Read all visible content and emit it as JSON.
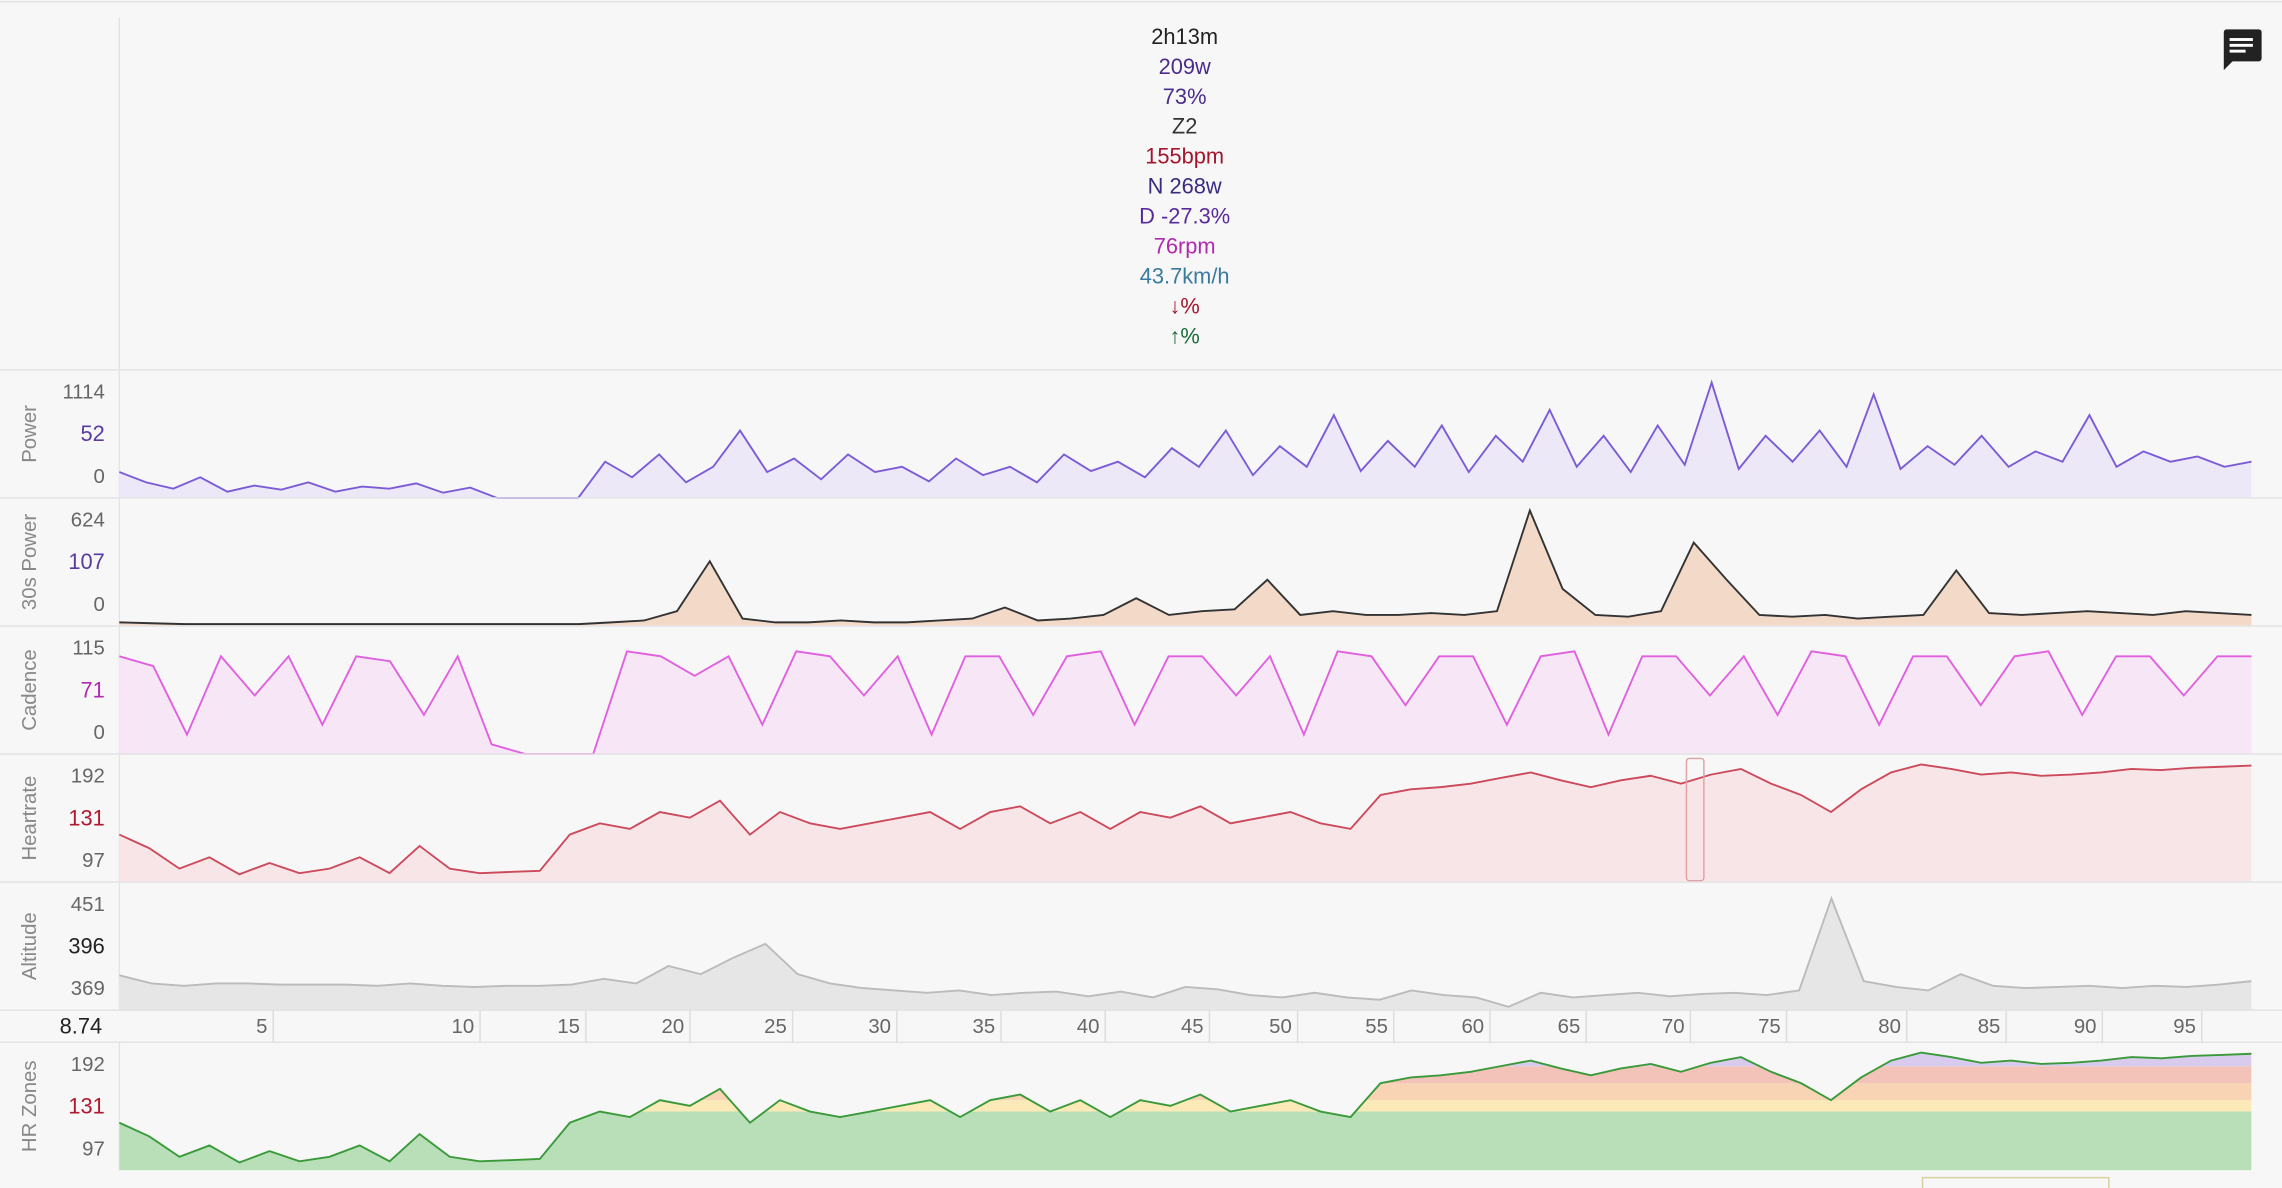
{
  "summary": [
    {
      "text": "2h13m",
      "color": "#222222"
    },
    {
      "text": "209w",
      "color": "#4a2c8c"
    },
    {
      "text": "73%",
      "color": "#4a2c8c"
    },
    {
      "text": "Z2",
      "color": "#333333"
    },
    {
      "text": "155bpm",
      "color": "#a3162e"
    },
    {
      "text": "N 268w",
      "color": "#3b2a80"
    },
    {
      "text": "D -27.3%",
      "color": "#5a2a9c"
    },
    {
      "text": "76rpm",
      "color": "#b02ab0"
    },
    {
      "text": "43.7km/h",
      "color": "#3a7a9e"
    },
    {
      "text": "↓%",
      "color": "#a3162e"
    },
    {
      "text": "↑%",
      "color": "#1a6a3a"
    }
  ],
  "xlim": [
    0,
    133
  ],
  "x_start_label": "8.74",
  "xticks": [
    5,
    10,
    15,
    20,
    25,
    30,
    35,
    40,
    45,
    50,
    55,
    60,
    65,
    70,
    75,
    80,
    85,
    90,
    95
  ],
  "xtick_times": [
    9.6,
    22.5,
    29.1,
    35.6,
    42.0,
    48.5,
    55.0,
    61.5,
    68.0,
    73.5,
    79.5,
    85.5,
    91.5,
    98.0,
    104.0,
    111.5,
    117.7,
    123.7,
    129.9
  ],
  "cursor_time": 98.3,
  "panels": [
    {
      "label": "Power",
      "ticks": [
        "1114",
        "52",
        "0"
      ],
      "mid_color": "#5b3aa0",
      "color": "#7b5cd6",
      "fill": "#ece8f7",
      "ylim": [
        0,
        1180
      ],
      "values": [
        250,
        150,
        90,
        200,
        60,
        120,
        80,
        150,
        60,
        110,
        90,
        140,
        50,
        100,
        0,
        0,
        0,
        0,
        350,
        200,
        420,
        150,
        300,
        650,
        250,
        380,
        180,
        420,
        250,
        300,
        160,
        380,
        220,
        300,
        150,
        420,
        260,
        350,
        200,
        480,
        300,
        650,
        220,
        500,
        300,
        800,
        260,
        550,
        300,
        700,
        250,
        600,
        350,
        850,
        300,
        600,
        250,
        700,
        320,
        1114,
        280,
        600,
        350,
        650,
        300,
        1000,
        280,
        500,
        320,
        600,
        300,
        450,
        350,
        800,
        300,
        450,
        350,
        400,
        300,
        350
      ]
    },
    {
      "label": "30s Power",
      "ticks": [
        "624",
        "107",
        "0"
      ],
      "mid_color": "#5b3aa0",
      "color": "#333333",
      "fill": "#f3d9c8",
      "ylim": [
        0,
        660
      ],
      "values": [
        20,
        15,
        10,
        10,
        10,
        10,
        10,
        10,
        10,
        10,
        10,
        10,
        10,
        10,
        10,
        20,
        30,
        80,
        350,
        40,
        20,
        20,
        30,
        20,
        20,
        30,
        40,
        100,
        30,
        40,
        60,
        150,
        60,
        80,
        90,
        250,
        60,
        80,
        60,
        60,
        70,
        60,
        80,
        624,
        200,
        60,
        50,
        80,
        450,
        250,
        60,
        50,
        60,
        40,
        50,
        60,
        300,
        70,
        60,
        70,
        80,
        70,
        60,
        80,
        70,
        60
      ]
    },
    {
      "label": "Cadence",
      "ticks": [
        "115",
        "71",
        "0"
      ],
      "mid_color": "#b02ab0",
      "color": "#e060e0",
      "fill": "#f6e6f6",
      "ylim": [
        0,
        125
      ],
      "values": [
        100,
        90,
        20,
        100,
        60,
        100,
        30,
        100,
        95,
        40,
        100,
        10,
        0,
        0,
        0,
        105,
        100,
        80,
        100,
        30,
        105,
        100,
        60,
        100,
        20,
        100,
        100,
        40,
        100,
        105,
        30,
        100,
        100,
        60,
        100,
        20,
        105,
        100,
        50,
        100,
        100,
        30,
        100,
        105,
        20,
        100,
        100,
        60,
        100,
        40,
        105,
        100,
        30,
        100,
        100,
        50,
        100,
        105,
        40,
        100,
        100,
        60,
        100,
        100
      ]
    },
    {
      "label": "Heartrate",
      "ticks": [
        "192",
        "131",
        "97"
      ],
      "mid_color": "#b01830",
      "color": "#cc4a5c",
      "fill": "#f8e5e7",
      "ylim": [
        88,
        196
      ],
      "cursor": true,
      "values": [
        130,
        118,
        100,
        110,
        95,
        105,
        96,
        100,
        110,
        96,
        120,
        100,
        96,
        97,
        98,
        130,
        140,
        135,
        150,
        145,
        160,
        130,
        150,
        140,
        135,
        140,
        145,
        150,
        135,
        150,
        155,
        140,
        150,
        135,
        150,
        145,
        155,
        140,
        145,
        150,
        140,
        135,
        165,
        170,
        172,
        175,
        180,
        185,
        178,
        172,
        178,
        182,
        175,
        183,
        188,
        175,
        165,
        150,
        170,
        185,
        192,
        188,
        183,
        185,
        182,
        183,
        185,
        188,
        187,
        189,
        190,
        191
      ]
    },
    {
      "label": "Altitude",
      "ticks": [
        "451",
        "396",
        "369"
      ],
      "mid_color": "#222222",
      "color": "#bbbbbb",
      "fill": "#e6e6e6",
      "ylim": [
        355,
        460
      ],
      "values": [
        385,
        378,
        376,
        378,
        378,
        377,
        377,
        377,
        376,
        378,
        376,
        375,
        376,
        376,
        377,
        382,
        378,
        393,
        386,
        400,
        412,
        386,
        378,
        374,
        372,
        370,
        372,
        368,
        370,
        371,
        367,
        371,
        366,
        375,
        373,
        368,
        366,
        370,
        366,
        364,
        372,
        368,
        366,
        358,
        370,
        366,
        368,
        370,
        367,
        369,
        370,
        368,
        372,
        451,
        380,
        375,
        372,
        386,
        376,
        374,
        375,
        376,
        374,
        376,
        375,
        377,
        380
      ]
    },
    {
      "label": "HR Zones",
      "ticks": [
        "192",
        "131",
        "97"
      ],
      "mid_color": "#b01830",
      "color": "#3a9a3a",
      "fill": "#d4ecd4",
      "ylim": [
        88,
        196
      ],
      "zones": [
        {
          "from": 88,
          "color": "#b9dfb9"
        },
        {
          "from": 140,
          "color": "#fbeab8"
        },
        {
          "from": 150,
          "color": "#f8d4b4"
        },
        {
          "from": 165,
          "color": "#f3c2b8"
        },
        {
          "from": 180,
          "color": "#d9cbee"
        }
      ],
      "values": [
        130,
        118,
        100,
        110,
        95,
        105,
        96,
        100,
        110,
        96,
        120,
        100,
        96,
        97,
        98,
        130,
        140,
        135,
        150,
        145,
        160,
        130,
        150,
        140,
        135,
        140,
        145,
        150,
        135,
        150,
        155,
        140,
        150,
        135,
        150,
        145,
        155,
        140,
        145,
        150,
        140,
        135,
        165,
        170,
        172,
        175,
        180,
        185,
        178,
        172,
        178,
        182,
        175,
        183,
        188,
        175,
        165,
        150,
        170,
        185,
        192,
        188,
        183,
        185,
        182,
        183,
        185,
        188,
        187,
        189,
        190,
        191
      ]
    }
  ]
}
